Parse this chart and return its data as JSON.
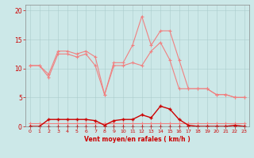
{
  "x": [
    0,
    1,
    2,
    3,
    4,
    5,
    6,
    7,
    8,
    9,
    10,
    11,
    12,
    13,
    14,
    15,
    16,
    17,
    18,
    19,
    20,
    21,
    22,
    23
  ],
  "line_upper": [
    10.5,
    10.5,
    9.0,
    13.0,
    13.0,
    12.5,
    13.0,
    12.0,
    5.5,
    11.0,
    11.0,
    14.0,
    19.0,
    14.0,
    16.5,
    16.5,
    11.5,
    6.5,
    6.5,
    6.5,
    5.5,
    5.5,
    5.0,
    5.0
  ],
  "line_mid": [
    10.5,
    10.5,
    8.5,
    12.5,
    12.5,
    12.0,
    12.5,
    10.5,
    5.5,
    10.5,
    10.5,
    11.0,
    10.5,
    13.0,
    14.5,
    11.5,
    6.5,
    6.5,
    6.5,
    6.5,
    5.5,
    5.5,
    5.0,
    5.0
  ],
  "line_lower": [
    0.5,
    0.5,
    0.5,
    0.5,
    0.5,
    0.5,
    0.5,
    0.5,
    0.5,
    0.5,
    0.5,
    0.5,
    0.5,
    0.5,
    0.5,
    0.5,
    0.5,
    0.5,
    0.5,
    0.5,
    0.5,
    0.5,
    0.5,
    0.5
  ],
  "line_dark1": [
    0.0,
    0.0,
    1.2,
    1.2,
    1.2,
    1.2,
    1.2,
    1.0,
    0.2,
    1.0,
    1.2,
    1.2,
    2.0,
    1.5,
    3.5,
    3.0,
    1.2,
    0.2,
    0.0,
    0.0,
    0.0,
    0.0,
    0.2,
    0.0
  ],
  "line_dark2": [
    0.0,
    0.0,
    0.0,
    0.0,
    0.0,
    0.0,
    0.0,
    0.0,
    0.0,
    0.0,
    0.0,
    0.0,
    0.0,
    0.0,
    0.0,
    0.0,
    0.0,
    0.0,
    0.0,
    0.0,
    0.0,
    0.0,
    0.0,
    0.0
  ],
  "color_light": "#f08080",
  "color_dark": "#cc0000",
  "bg_color": "#cce8e8",
  "grid_color": "#aacccc",
  "ylabel_vals": [
    0,
    5,
    10,
    15,
    20
  ],
  "ylim": [
    0,
    21
  ],
  "xlim": [
    -0.5,
    23.5
  ],
  "xlabel": "Vent moyen/en rafales ( km/h )",
  "xlabel_color": "#cc0000",
  "tick_color": "#cc0000",
  "spine_color": "#888888"
}
